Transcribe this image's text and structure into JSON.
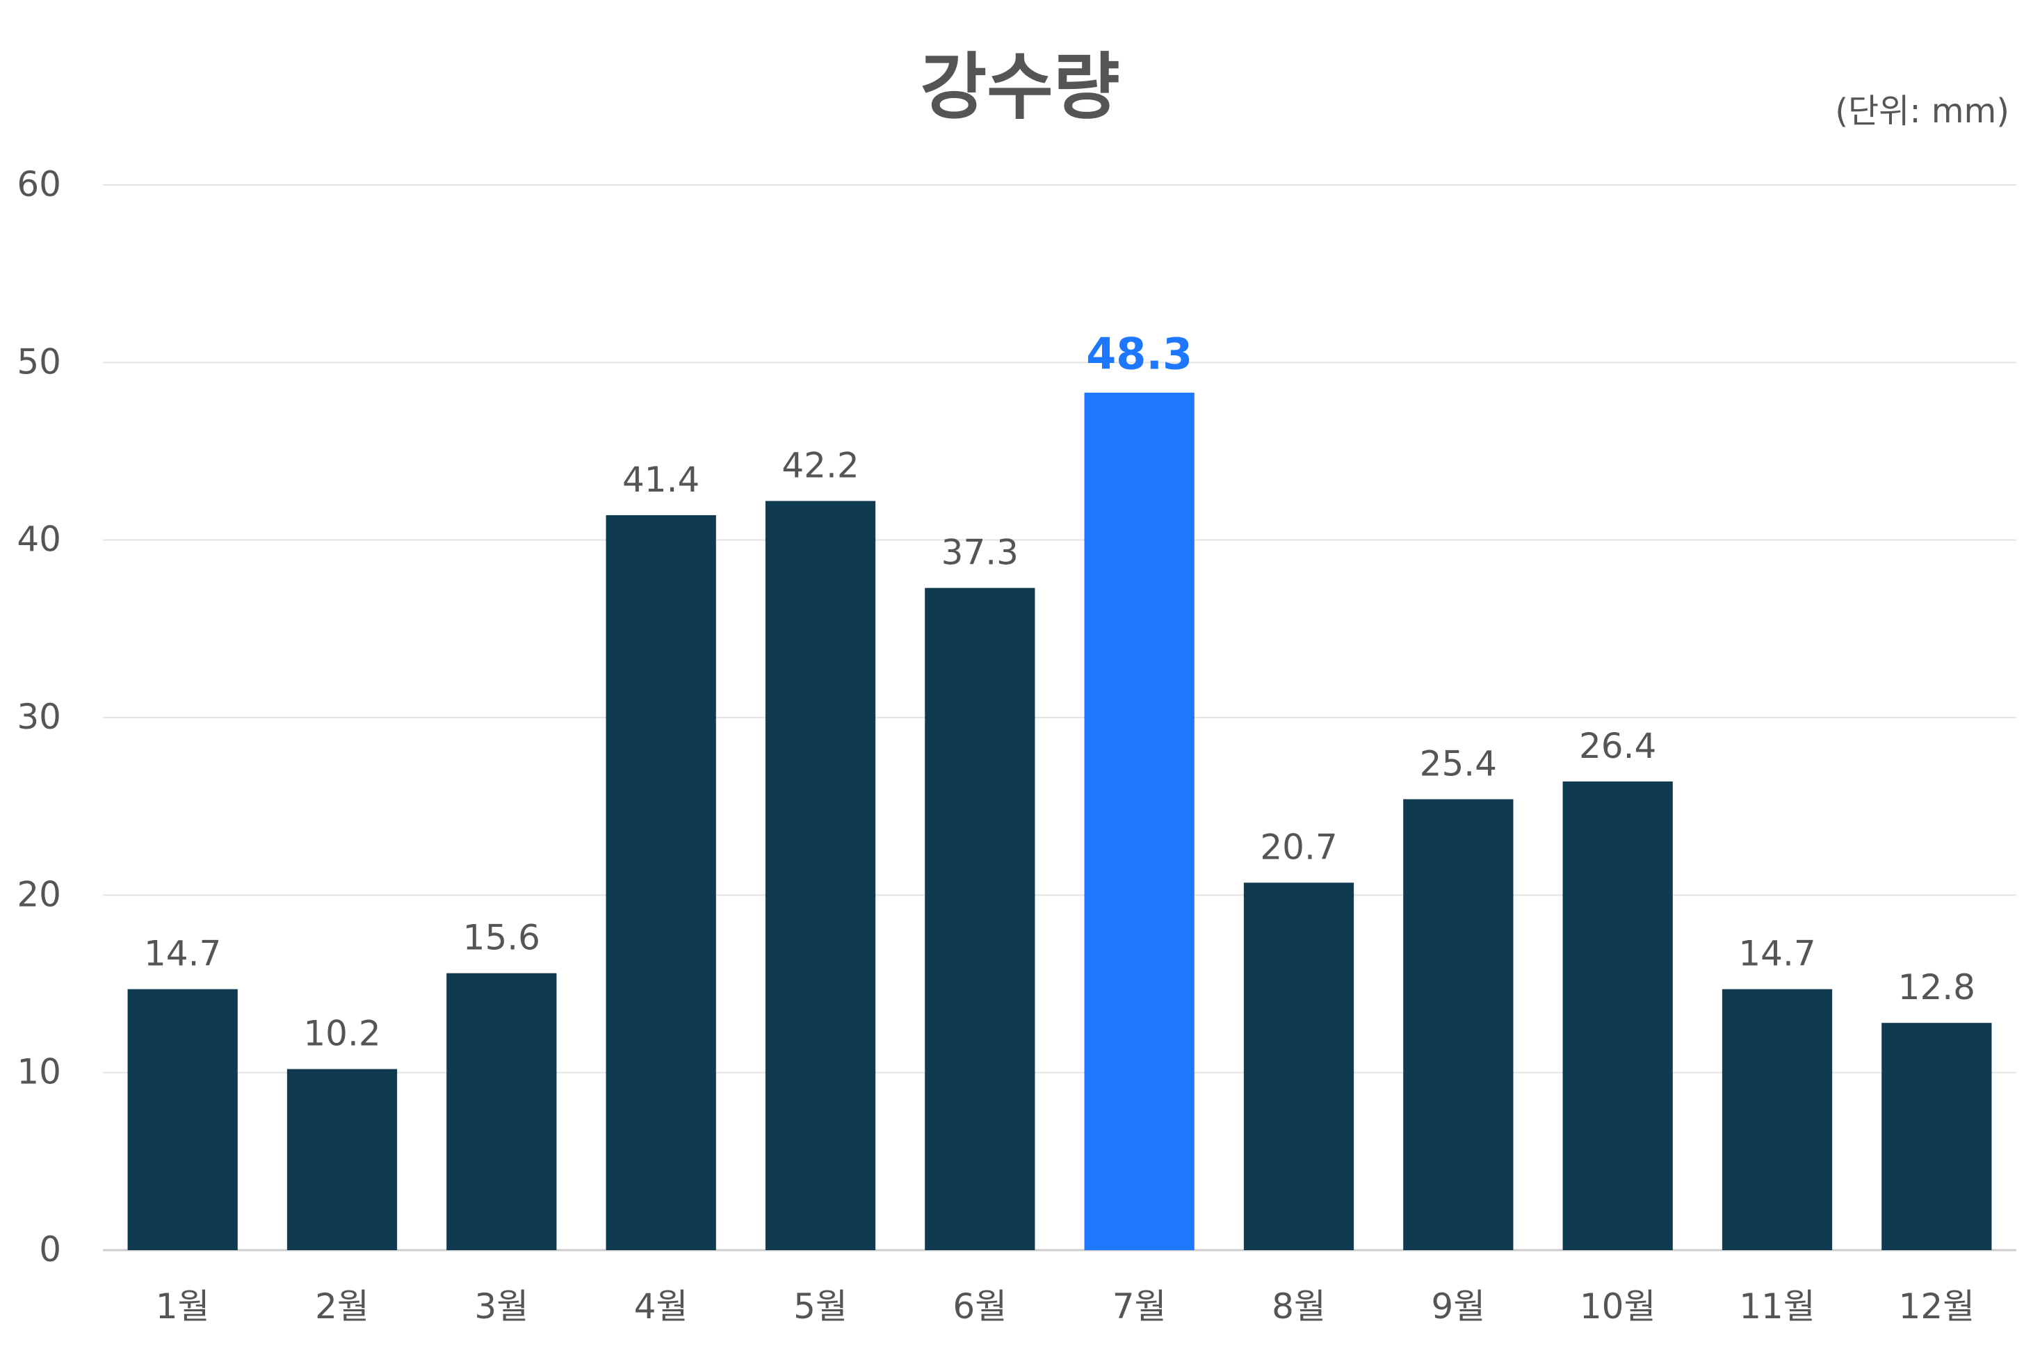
{
  "chart_data": {
    "type": "bar",
    "title": "강수량",
    "unit_label": "(단위: mm)",
    "categories": [
      "1월",
      "2월",
      "3월",
      "4월",
      "5월",
      "6월",
      "7월",
      "8월",
      "9월",
      "10월",
      "11월",
      "12월"
    ],
    "values": [
      14.7,
      10.2,
      15.6,
      41.4,
      42.2,
      37.3,
      48.3,
      20.7,
      25.4,
      26.4,
      14.7,
      12.8
    ],
    "value_labels": [
      "14.7",
      "10.2",
      "15.6",
      "41.4",
      "42.2",
      "37.3",
      "48.3",
      "20.7",
      "25.4",
      "26.4",
      "14.7",
      "12.8"
    ],
    "highlight_index": 6,
    "ylim": [
      0,
      60
    ],
    "yticks": [
      0,
      10,
      20,
      30,
      40,
      50,
      60
    ],
    "grid": true,
    "xlabel": "",
    "ylabel": "",
    "colors": {
      "bar": "#0f3a50",
      "highlight": "#1e77ff",
      "label": "#555555",
      "highlight_label": "#1e77ff",
      "grid": "#e3e3e3",
      "axis": "#cccccc"
    }
  }
}
